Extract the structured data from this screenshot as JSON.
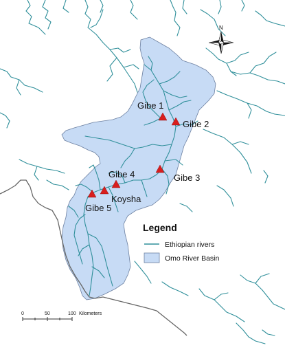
{
  "map": {
    "dams": [
      {
        "label": "Gibe 1"
      },
      {
        "label": "Gibe 2"
      },
      {
        "label": "Gibe 3"
      },
      {
        "label": "Gibe 4"
      },
      {
        "label": "Koysha"
      },
      {
        "label": "Gibe 5"
      }
    ],
    "legend": {
      "title": "Legend",
      "items": [
        {
          "label": "Ethiopian rivers",
          "symbol": "river-line"
        },
        {
          "label": "Omo River Basin",
          "symbol": "basin-fill"
        }
      ]
    },
    "scale_bar": {
      "ticks": [
        "0",
        "50",
        "100"
      ],
      "unit": "Kilometers"
    },
    "north_arrow": {
      "label": "N"
    },
    "colors": {
      "basin_fill": "#c7dbf5",
      "river": "#2f8f9a",
      "dam_marker": "#d81e1e",
      "border": "#666666"
    }
  }
}
